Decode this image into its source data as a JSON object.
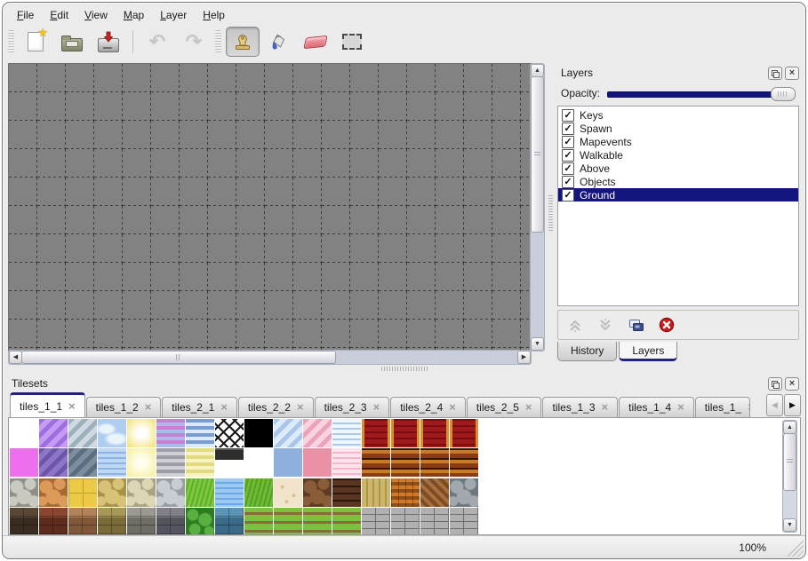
{
  "menu_bar": {
    "items": [
      {
        "label": "File"
      },
      {
        "label": "Edit"
      },
      {
        "label": "View"
      },
      {
        "label": "Map"
      },
      {
        "label": "Layer"
      },
      {
        "label": "Help"
      }
    ]
  },
  "toolbar": {
    "buttons": [
      {
        "name": "new-map-button",
        "icon": "new-file-icon",
        "state": "enabled"
      },
      {
        "name": "open-map-button",
        "icon": "open-folder-icon",
        "state": "enabled"
      },
      {
        "name": "save-map-button",
        "icon": "save-disk-icon",
        "state": "enabled"
      },
      {
        "name": "undo-button",
        "icon": "undo-arrow-icon",
        "state": "disabled"
      },
      {
        "name": "redo-button",
        "icon": "redo-arrow-icon",
        "state": "disabled"
      },
      {
        "name": "stamp-tool-button",
        "icon": "stamp-icon",
        "state": "active"
      },
      {
        "name": "fill-tool-button",
        "icon": "paint-bucket-icon",
        "state": "enabled"
      },
      {
        "name": "eraser-tool-button",
        "icon": "eraser-icon",
        "state": "enabled"
      },
      {
        "name": "select-tool-button",
        "icon": "selection-rectangle-icon",
        "state": "enabled"
      }
    ]
  },
  "layers_panel": {
    "title": "Layers",
    "opacity_label": "Opacity:",
    "opacity_percent": 100,
    "layers": [
      {
        "label": "Keys",
        "checked": true,
        "selected": false
      },
      {
        "label": "Spawn",
        "checked": true,
        "selected": false
      },
      {
        "label": "Mapevents",
        "checked": true,
        "selected": false
      },
      {
        "label": "Walkable",
        "checked": true,
        "selected": false
      },
      {
        "label": "Above",
        "checked": true,
        "selected": false
      },
      {
        "label": "Objects",
        "checked": true,
        "selected": false
      },
      {
        "label": "Ground",
        "checked": true,
        "selected": true
      }
    ],
    "action_icons": [
      "raise-layer-icon",
      "lower-layer-icon",
      "duplicate-layer-icon",
      "delete-layer-icon"
    ],
    "bottom_tabs": [
      {
        "label": "History",
        "active": false
      },
      {
        "label": "Layers",
        "active": true
      }
    ]
  },
  "tilesets_panel": {
    "title": "Tilesets",
    "tabs": [
      {
        "label": "tiles_1_1",
        "active": true
      },
      {
        "label": "tiles_1_2",
        "active": false
      },
      {
        "label": "tiles_2_1",
        "active": false
      },
      {
        "label": "tiles_2_2",
        "active": false
      },
      {
        "label": "tiles_2_3",
        "active": false
      },
      {
        "label": "tiles_2_4",
        "active": false
      },
      {
        "label": "tiles_2_5",
        "active": false
      },
      {
        "label": "tiles_1_3",
        "active": false
      },
      {
        "label": "tiles_1_4",
        "active": false
      },
      {
        "label": "tiles_1_",
        "active": false,
        "truncated": true
      }
    ],
    "palette": {
      "tile_size": 32,
      "rows": [
        [
          {
            "n": "blank",
            "p": "empty"
          },
          {
            "n": "violet-diag",
            "p": "diag",
            "a": "#9b6fe0",
            "b": "#c79bf2"
          },
          {
            "n": "gray-diag",
            "p": "diag",
            "a": "#9fb0bd",
            "b": "#cfd9e2"
          },
          {
            "n": "sky-clouds",
            "p": "clouds",
            "a": "#aecdf0",
            "b": "#e9f4fd"
          },
          {
            "n": "light-glow",
            "p": "glow",
            "a": "#ffffff",
            "b": "#f2e47c"
          },
          {
            "n": "violet-stripes",
            "p": "hstripe",
            "a": "#c77fd2",
            "b": "#a9bce9"
          },
          {
            "n": "blue-stripes",
            "p": "hstripe",
            "a": "#7b9ccf",
            "b": "#dce9f6"
          },
          {
            "n": "lattice",
            "p": "lattice",
            "a": "#ffffff",
            "b": "#1a1a1a"
          },
          {
            "n": "black",
            "p": "solid",
            "a": "#000000"
          },
          {
            "n": "lightblue-diag",
            "p": "diag",
            "a": "#a9c6ea",
            "b": "#dcebfa"
          },
          {
            "n": "pink-diag",
            "p": "diag",
            "a": "#eba3bb",
            "b": "#f9d3de"
          },
          {
            "n": "blue-waves",
            "p": "waves",
            "a": "#abcbec",
            "b": "#eef6fe"
          },
          {
            "n": "red-curtain",
            "p": "curtain",
            "a": "#9e1a1c",
            "b": "#d88f2e"
          },
          {
            "n": "red-curtain",
            "p": "curtain",
            "a": "#9e1a1c",
            "b": "#d88f2e"
          },
          {
            "n": "red-curtain",
            "p": "curtain",
            "a": "#9e1a1c",
            "b": "#d88f2e"
          },
          {
            "n": "red-curtain",
            "p": "curtain",
            "a": "#9e1a1c",
            "b": "#d88f2e"
          }
        ],
        [
          {
            "n": "magenta",
            "p": "solid",
            "a": "#ee6fee"
          },
          {
            "n": "darkviolet-diag",
            "p": "diag",
            "a": "#6d55a8",
            "b": "#8d75c8"
          },
          {
            "n": "slate-diag",
            "p": "diag",
            "a": "#5d6d80",
            "b": "#7d8da0"
          },
          {
            "n": "water-waves",
            "p": "waves",
            "a": "#8fb4e4",
            "b": "#bcd8f4"
          },
          {
            "n": "pale-glow",
            "p": "glow",
            "a": "#fffef0",
            "b": "#f6ef9e"
          },
          {
            "n": "gray-stripes",
            "p": "hstripe",
            "a": "#9d9da8",
            "b": "#cfcfd8"
          },
          {
            "n": "yellow-stripes",
            "p": "hstripe",
            "a": "#e3db7f",
            "b": "#f6f2c2"
          },
          {
            "n": "dark-ledge",
            "p": "ledge",
            "a": "#2e2e2e"
          },
          {
            "n": "blank",
            "p": "empty"
          },
          {
            "n": "blue-patch",
            "p": "solid",
            "a": "#8fb0dc"
          },
          {
            "n": "pink-patch",
            "p": "solid",
            "a": "#ea91a5"
          },
          {
            "n": "pink-waves",
            "p": "waves",
            "a": "#f3b7c9",
            "b": "#fde3ec"
          },
          {
            "n": "brown-beams",
            "p": "hstripe4",
            "a": "#8a3c14",
            "b": "#c97a28"
          },
          {
            "n": "brown-beams",
            "p": "hstripe4",
            "a": "#8a3c14",
            "b": "#c97a28"
          },
          {
            "n": "brown-beams",
            "p": "hstripe4",
            "a": "#8a3c14",
            "b": "#c97a28"
          },
          {
            "n": "brown-beams",
            "p": "hstripe4",
            "a": "#8a3c14",
            "b": "#c97a28"
          }
        ],
        [
          {
            "n": "gray-paving",
            "p": "stones",
            "a": "#c9c9c0",
            "b": "#8f8f86"
          },
          {
            "n": "orange-paving",
            "p": "stones",
            "a": "#dc9a58",
            "b": "#a86a34"
          },
          {
            "n": "gold-tiles",
            "p": "checker",
            "a": "#ecca46",
            "b": "#c0a028"
          },
          {
            "n": "yellow-stones",
            "p": "stones",
            "a": "#d8c276",
            "b": "#a89048"
          },
          {
            "n": "beige-cobbles",
            "p": "stones",
            "a": "#ddd6b4",
            "b": "#aaa381"
          },
          {
            "n": "gray-cobbles",
            "p": "stones",
            "a": "#c9cdd1",
            "b": "#969da5"
          },
          {
            "n": "bright-grass",
            "p": "grass",
            "a": "#7cc83e",
            "b": "#5fae28"
          },
          {
            "n": "deep-water",
            "p": "waves",
            "a": "#6aaae6",
            "b": "#9cc8f2"
          },
          {
            "n": "grass",
            "p": "grass",
            "a": "#6fbc34",
            "b": "#549e22"
          },
          {
            "n": "sand",
            "p": "speckle",
            "a": "#f2e3cb",
            "b": "#d8bf94"
          },
          {
            "n": "dirt-stones",
            "p": "stones",
            "a": "#8a5c38",
            "b": "#5e3a20"
          },
          {
            "n": "wood-shingles",
            "p": "shingles",
            "a": "#5a3622",
            "b": "#2e180e"
          },
          {
            "n": "wood-planks",
            "p": "vstripe",
            "a": "#cdb56c",
            "b": "#b09648"
          },
          {
            "n": "basket-weave",
            "p": "weave",
            "a": "#d07a28",
            "b": "#8f4e16"
          },
          {
            "n": "herringbone",
            "p": "herring",
            "a": "#a86e3c",
            "b": "#7c4c24"
          },
          {
            "n": "round-stones",
            "p": "stones",
            "a": "#a2a8ae",
            "b": "#6f767e"
          }
        ],
        [
          {
            "n": "darkbrown-wall",
            "p": "wall",
            "a": "#5a4634",
            "b": "#3a2c20"
          },
          {
            "n": "redbrown-wall",
            "p": "wall",
            "a": "#8a4630",
            "b": "#5e2c1c"
          },
          {
            "n": "tan-wall",
            "p": "wall",
            "a": "#b2835a",
            "b": "#81573a"
          },
          {
            "n": "olive-wall",
            "p": "wall",
            "a": "#a89858",
            "b": "#7a6c38"
          },
          {
            "n": "graystone-wall",
            "p": "wall",
            "a": "#9a9a92",
            "b": "#6e6e66"
          },
          {
            "n": "darkgray-wall",
            "p": "wall",
            "a": "#80808a",
            "b": "#54545e"
          },
          {
            "n": "hedge",
            "p": "hedge",
            "a": "#58b040",
            "b": "#2e7c22"
          },
          {
            "n": "teal-wall",
            "p": "wall",
            "a": "#5c94b4",
            "b": "#3a6a88"
          },
          {
            "n": "farm-field",
            "p": "field",
            "a": "#7cc040",
            "b": "#8a6840"
          },
          {
            "n": "farm-field",
            "p": "field",
            "a": "#7cc040",
            "b": "#8a6840"
          },
          {
            "n": "farm-field",
            "p": "field",
            "a": "#7cc040",
            "b": "#8a6840"
          },
          {
            "n": "farm-field",
            "p": "field",
            "a": "#7cc040",
            "b": "#8a6840"
          },
          {
            "n": "stone-bricks",
            "p": "brick",
            "a": "#b0b0b0",
            "b": "#6e6e6e"
          },
          {
            "n": "stone-bricks",
            "p": "brick",
            "a": "#b0b0b0",
            "b": "#6e6e6e"
          },
          {
            "n": "stone-bricks",
            "p": "brick",
            "a": "#b0b0b0",
            "b": "#6e6e6e"
          },
          {
            "n": "stone-bricks",
            "p": "brick",
            "a": "#b0b0b0",
            "b": "#6e6e6e"
          }
        ]
      ]
    }
  },
  "statusbar": {
    "zoom_level": "100%"
  },
  "colors": {
    "accent_navy": "#15157e",
    "canvas_gray": "#828282",
    "grid_line": "#3e3e3e",
    "chrome_bg": "#ebebeb",
    "selection_text": "#ffffff"
  }
}
